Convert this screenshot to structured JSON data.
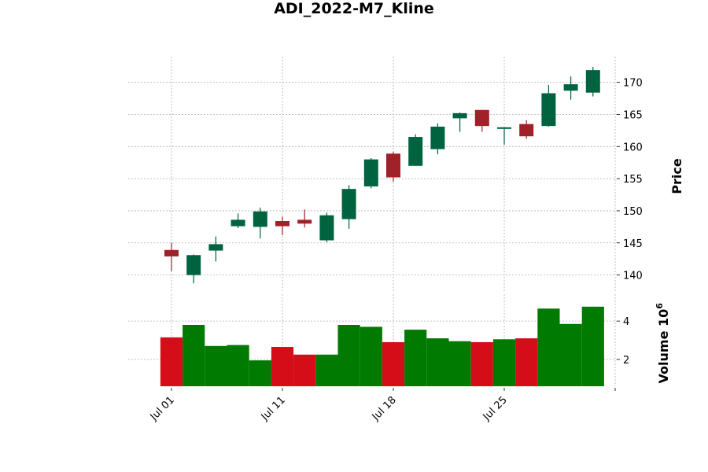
{
  "chart_data": {
    "type": "candlestick",
    "title": "ADI_2022-M7_Kline",
    "price_axis": {
      "label": "Price",
      "ylim": [
        137.5,
        174.0
      ],
      "ticks": [
        140,
        145,
        150,
        155,
        160,
        165,
        170
      ]
    },
    "volume_axis": {
      "label": "Volume",
      "exponent_label": "10",
      "exponent_power": "6",
      "ylim": [
        0.6,
        5.4
      ],
      "ticks": [
        2,
        4
      ],
      "unit_multiplier": 1000000
    },
    "x_tick_labels": [
      {
        "label": "Jul 01",
        "index": 0
      },
      {
        "label": "Jul 11",
        "index": 5
      },
      {
        "label": "Jul 18",
        "index": 10
      },
      {
        "label": "Jul 25",
        "index": 15
      },
      {
        "label": "",
        "index": 20
      }
    ],
    "grid": true,
    "colors": {
      "up": "#006340",
      "down": "#a02128",
      "volume_up": "#007a00",
      "volume_down": "#d50d18"
    },
    "candles": [
      {
        "date": "2022-07-01",
        "open": 143.9,
        "high": 145.0,
        "low": 140.6,
        "close": 142.9,
        "volume": 3.15
      },
      {
        "date": "2022-07-05",
        "open": 140.0,
        "high": 143.2,
        "low": 138.7,
        "close": 143.1,
        "volume": 3.8
      },
      {
        "date": "2022-07-06",
        "open": 143.8,
        "high": 146.0,
        "low": 142.1,
        "close": 144.8,
        "volume": 2.7
      },
      {
        "date": "2022-07-07",
        "open": 147.6,
        "high": 149.6,
        "low": 147.3,
        "close": 148.6,
        "volume": 2.75
      },
      {
        "date": "2022-07-08",
        "open": 147.5,
        "high": 150.5,
        "low": 145.7,
        "close": 149.9,
        "volume": 1.95
      },
      {
        "date": "2022-07-11",
        "open": 148.4,
        "high": 149.1,
        "low": 146.2,
        "close": 147.6,
        "volume": 2.65
      },
      {
        "date": "2022-07-12",
        "open": 148.6,
        "high": 150.2,
        "low": 147.4,
        "close": 148.0,
        "volume": 2.25
      },
      {
        "date": "2022-07-13",
        "open": 145.4,
        "high": 149.7,
        "low": 145.1,
        "close": 149.3,
        "volume": 2.25
      },
      {
        "date": "2022-07-14",
        "open": 148.7,
        "high": 154.0,
        "low": 147.2,
        "close": 153.4,
        "volume": 3.8
      },
      {
        "date": "2022-07-15",
        "open": 153.8,
        "high": 158.2,
        "low": 153.5,
        "close": 158.0,
        "volume": 3.7
      },
      {
        "date": "2022-07-18",
        "open": 158.9,
        "high": 159.2,
        "low": 154.5,
        "close": 155.2,
        "volume": 2.9
      },
      {
        "date": "2022-07-19",
        "open": 157.0,
        "high": 161.9,
        "low": 157.0,
        "close": 161.5,
        "volume": 3.55
      },
      {
        "date": "2022-07-20",
        "open": 159.6,
        "high": 163.6,
        "low": 158.8,
        "close": 163.1,
        "volume": 3.1
      },
      {
        "date": "2022-07-21",
        "open": 164.4,
        "high": 165.3,
        "low": 162.3,
        "close": 165.2,
        "volume": 2.95
      },
      {
        "date": "2022-07-22",
        "open": 165.7,
        "high": 165.7,
        "low": 162.3,
        "close": 163.2,
        "volume": 2.9
      },
      {
        "date": "2022-07-25",
        "open": 162.8,
        "high": 163.0,
        "low": 160.3,
        "close": 163.0,
        "volume": 3.05
      },
      {
        "date": "2022-07-26",
        "open": 163.5,
        "high": 164.1,
        "low": 161.2,
        "close": 161.6,
        "volume": 3.1
      },
      {
        "date": "2022-07-27",
        "open": 163.2,
        "high": 169.6,
        "low": 163.1,
        "close": 168.3,
        "volume": 4.65
      },
      {
        "date": "2022-07-28",
        "open": 168.7,
        "high": 170.9,
        "low": 167.3,
        "close": 169.7,
        "volume": 3.85
      },
      {
        "date": "2022-07-29",
        "open": 168.4,
        "high": 172.4,
        "low": 167.8,
        "close": 171.9,
        "volume": 4.75
      }
    ]
  }
}
